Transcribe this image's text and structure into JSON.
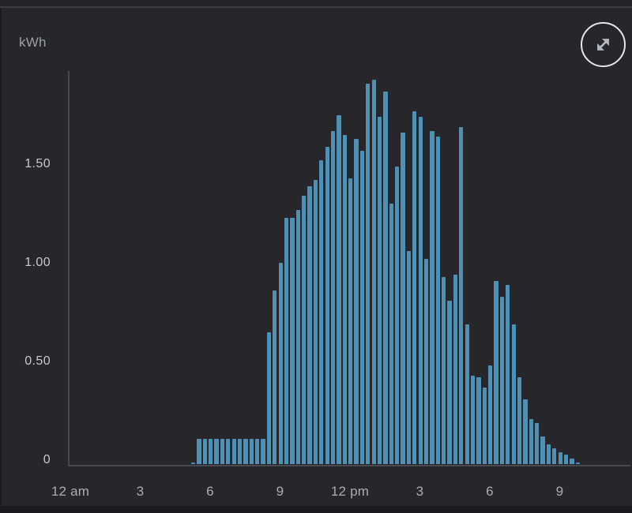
{
  "header": {
    "unit_label": "kWh"
  },
  "controls": {
    "expand_button": {
      "icon": "expand-diagonal-arrows"
    }
  },
  "colors": {
    "page_bg": "#1b1b1f",
    "page_top_strip": "#232328",
    "divider": "#3b3e45",
    "card_bg": "#27272b",
    "bar": "#4f90b5",
    "axis_line": "#45484e",
    "y_label": "#c6c9ce",
    "x_label": "#a9adb4",
    "unit_label": "#9aa0aa",
    "icon": "#b4b9c0",
    "icon_ring": "#e4e6e9"
  },
  "chart_data": {
    "type": "bar",
    "title": "",
    "ylabel": "kWh",
    "unit": "kWh",
    "interval_minutes": 15,
    "ylim": [
      0,
      2.0
    ],
    "xlim_hours": [
      0,
      24
    ],
    "grid": false,
    "legend": "none",
    "y_ticks": [
      {
        "label": "0",
        "value": 0
      },
      {
        "label": "0.50",
        "value": 0.5
      },
      {
        "label": "1.00",
        "value": 1.0
      },
      {
        "label": "1.50",
        "value": 1.5
      }
    ],
    "x_ticks": [
      {
        "label": "12 am",
        "hour": 0
      },
      {
        "label": "3",
        "hour": 3
      },
      {
        "label": "6",
        "hour": 6
      },
      {
        "label": "9",
        "hour": 9
      },
      {
        "label": "12 pm",
        "hour": 12
      },
      {
        "label": "3",
        "hour": 15
      },
      {
        "label": "6",
        "hour": 18
      },
      {
        "label": "9",
        "hour": 21
      }
    ],
    "points": [
      {
        "time": "05:15",
        "kwh": 0.01
      },
      {
        "time": "05:30",
        "kwh": 0.13
      },
      {
        "time": "05:45",
        "kwh": 0.13
      },
      {
        "time": "06:00",
        "kwh": 0.13
      },
      {
        "time": "06:15",
        "kwh": 0.13
      },
      {
        "time": "06:30",
        "kwh": 0.13
      },
      {
        "time": "06:45",
        "kwh": 0.13
      },
      {
        "time": "07:00",
        "kwh": 0.13
      },
      {
        "time": "07:15",
        "kwh": 0.13
      },
      {
        "time": "07:30",
        "kwh": 0.13
      },
      {
        "time": "07:45",
        "kwh": 0.13
      },
      {
        "time": "08:00",
        "kwh": 0.13
      },
      {
        "time": "08:15",
        "kwh": 0.13
      },
      {
        "time": "08:30",
        "kwh": 0.67
      },
      {
        "time": "08:45",
        "kwh": 0.88
      },
      {
        "time": "09:00",
        "kwh": 1.02
      },
      {
        "time": "09:15",
        "kwh": 1.25
      },
      {
        "time": "09:30",
        "kwh": 1.25
      },
      {
        "time": "09:45",
        "kwh": 1.29
      },
      {
        "time": "10:00",
        "kwh": 1.36
      },
      {
        "time": "10:15",
        "kwh": 1.41
      },
      {
        "time": "10:30",
        "kwh": 1.44
      },
      {
        "time": "10:45",
        "kwh": 1.54
      },
      {
        "time": "11:00",
        "kwh": 1.61
      },
      {
        "time": "11:15",
        "kwh": 1.69
      },
      {
        "time": "11:30",
        "kwh": 1.77
      },
      {
        "time": "11:45",
        "kwh": 1.67
      },
      {
        "time": "12:00",
        "kwh": 1.45
      },
      {
        "time": "12:15",
        "kwh": 1.65
      },
      {
        "time": "12:30",
        "kwh": 1.59
      },
      {
        "time": "12:45",
        "kwh": 1.93
      },
      {
        "time": "13:00",
        "kwh": 1.95
      },
      {
        "time": "13:15",
        "kwh": 1.76
      },
      {
        "time": "13:30",
        "kwh": 1.89
      },
      {
        "time": "13:45",
        "kwh": 1.32
      },
      {
        "time": "14:00",
        "kwh": 1.51
      },
      {
        "time": "14:15",
        "kwh": 1.68
      },
      {
        "time": "14:30",
        "kwh": 1.08
      },
      {
        "time": "14:45",
        "kwh": 1.79
      },
      {
        "time": "15:00",
        "kwh": 1.76
      },
      {
        "time": "15:15",
        "kwh": 1.04
      },
      {
        "time": "15:30",
        "kwh": 1.69
      },
      {
        "time": "15:45",
        "kwh": 1.66
      },
      {
        "time": "16:00",
        "kwh": 0.95
      },
      {
        "time": "16:15",
        "kwh": 0.83
      },
      {
        "time": "16:30",
        "kwh": 0.96
      },
      {
        "time": "16:45",
        "kwh": 1.71
      },
      {
        "time": "17:00",
        "kwh": 0.71
      },
      {
        "time": "17:15",
        "kwh": 0.45
      },
      {
        "time": "17:30",
        "kwh": 0.44
      },
      {
        "time": "17:45",
        "kwh": 0.39
      },
      {
        "time": "18:00",
        "kwh": 0.5
      },
      {
        "time": "18:15",
        "kwh": 0.93
      },
      {
        "time": "18:30",
        "kwh": 0.85
      },
      {
        "time": "18:45",
        "kwh": 0.91
      },
      {
        "time": "19:00",
        "kwh": 0.71
      },
      {
        "time": "19:15",
        "kwh": 0.44
      },
      {
        "time": "19:30",
        "kwh": 0.33
      },
      {
        "time": "19:45",
        "kwh": 0.23
      },
      {
        "time": "20:00",
        "kwh": 0.21
      },
      {
        "time": "20:15",
        "kwh": 0.14
      },
      {
        "time": "20:30",
        "kwh": 0.1
      },
      {
        "time": "20:45",
        "kwh": 0.08
      },
      {
        "time": "21:00",
        "kwh": 0.06
      },
      {
        "time": "21:15",
        "kwh": 0.05
      },
      {
        "time": "21:30",
        "kwh": 0.03
      },
      {
        "time": "21:45",
        "kwh": 0.01
      }
    ]
  }
}
